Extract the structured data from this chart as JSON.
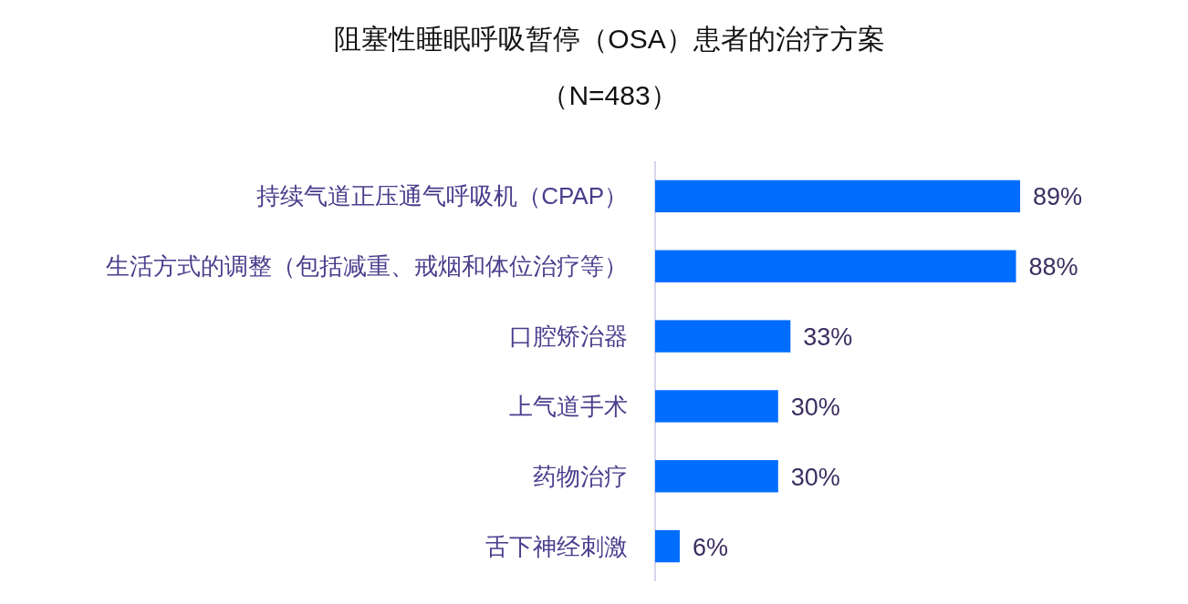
{
  "chart_data": {
    "type": "bar",
    "orientation": "horizontal",
    "title": "阻塞性睡眠呼吸暂停（OSA）患者的治疗方案",
    "subtitle": "（N=483）",
    "categories": [
      "持续气道正压通气呼吸机（CPAP）",
      "生活方式的调整（包括减重、戒烟和体位治疗等）",
      "口腔矫治器",
      "上气道手术",
      "药物治疗",
      "舌下神经刺激"
    ],
    "values": [
      89,
      88,
      33,
      30,
      30,
      6
    ],
    "color": "#006dff",
    "value_labels": [
      "89%",
      "88%",
      "33%",
      "30%",
      "30%",
      "6%"
    ],
    "tick_labels": "y"
  }
}
